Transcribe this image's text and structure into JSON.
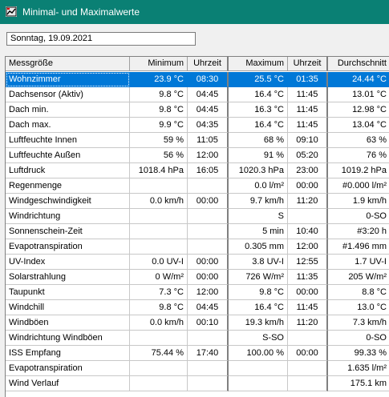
{
  "window": {
    "title": "Minimal- und Maximalwerte"
  },
  "date_field": {
    "value": "Sonntag, 19.09.2021"
  },
  "table": {
    "headers": {
      "name": "Messgröße",
      "min": "Minimum",
      "min_time": "Uhrzeit",
      "max": "Maximum",
      "max_time": "Uhrzeit",
      "avg": "Durchschnitt"
    },
    "selected_row": 0,
    "rows": [
      {
        "name": "Wohnzimmer",
        "min": "23.9 °C",
        "min_time": "08:30",
        "max": "25.5 °C",
        "max_time": "01:35",
        "avg": "24.44 °C"
      },
      {
        "name": "Dachsensor (Aktiv)",
        "min": "9.8 °C",
        "min_time": "04:45",
        "max": "16.4 °C",
        "max_time": "11:45",
        "avg": "13.01 °C"
      },
      {
        "name": "Dach min.",
        "min": "9.8 °C",
        "min_time": "04:45",
        "max": "16.3 °C",
        "max_time": "11:45",
        "avg": "12.98 °C"
      },
      {
        "name": "Dach max.",
        "min": "9.9 °C",
        "min_time": "04:35",
        "max": "16.4 °C",
        "max_time": "11:45",
        "avg": "13.04 °C"
      },
      {
        "name": "Luftfeuchte Innen",
        "min": "59 %",
        "min_time": "11:05",
        "max": "68 %",
        "max_time": "09:10",
        "avg": "63 %"
      },
      {
        "name": "Luftfeuchte Außen",
        "min": "56 %",
        "min_time": "12:00",
        "max": "91 %",
        "max_time": "05:20",
        "avg": "76 %"
      },
      {
        "name": "Luftdruck",
        "min": "1018.4 hPa",
        "min_time": "16:05",
        "max": "1020.3 hPa",
        "max_time": "23:00",
        "avg": "1019.2 hPa"
      },
      {
        "name": "Regenmenge",
        "min": "",
        "min_time": "",
        "max": "0.0 l/m²",
        "max_time": "00:00",
        "avg": "#0.000 l/m²"
      },
      {
        "name": "Windgeschwindigkeit",
        "min": "0.0 km/h",
        "min_time": "00:00",
        "max": "9.7 km/h",
        "max_time": "11:20",
        "avg": "1.9 km/h"
      },
      {
        "name": "Windrichtung",
        "min": "",
        "min_time": "",
        "max": "S",
        "max_time": "",
        "avg": "0-SO"
      },
      {
        "name": "Sonnenschein-Zeit",
        "min": "",
        "min_time": "",
        "max": "5 min",
        "max_time": "10:40",
        "avg": "#3:20 h"
      },
      {
        "name": "Evapotranspiration",
        "min": "",
        "min_time": "",
        "max": "0.305 mm",
        "max_time": "12:00",
        "avg": "#1.496 mm"
      },
      {
        "name": "UV-Index",
        "min": "0.0 UV-I",
        "min_time": "00:00",
        "max": "3.8 UV-I",
        "max_time": "12:55",
        "avg": "1.7 UV-I"
      },
      {
        "name": "Solarstrahlung",
        "min": "0 W/m²",
        "min_time": "00:00",
        "max": "726 W/m²",
        "max_time": "11:35",
        "avg": "205 W/m²"
      },
      {
        "name": "Taupunkt",
        "min": "7.3 °C",
        "min_time": "12:00",
        "max": "9.8 °C",
        "max_time": "00:00",
        "avg": "8.8 °C"
      },
      {
        "name": "Windchill",
        "min": "9.8 °C",
        "min_time": "04:45",
        "max": "16.4 °C",
        "max_time": "11:45",
        "avg": "13.0 °C"
      },
      {
        "name": "Windböen",
        "min": "0.0 km/h",
        "min_time": "00:10",
        "max": "19.3 km/h",
        "max_time": "11:20",
        "avg": "7.3 km/h"
      },
      {
        "name": "Windrichtung Windböen",
        "min": "",
        "min_time": "",
        "max": "S-SO",
        "max_time": "",
        "avg": "0-SO"
      },
      {
        "name": "ISS Empfang",
        "min": "75.44 %",
        "min_time": "17:40",
        "max": "100.00 %",
        "max_time": "00:00",
        "avg": "99.33 %"
      },
      {
        "name": "Evapotranspiration",
        "min": "",
        "min_time": "",
        "max": "",
        "max_time": "",
        "avg": "1.635 l/m²"
      },
      {
        "name": "Wind Verlauf",
        "min": "",
        "min_time": "",
        "max": "",
        "max_time": "",
        "avg": "175.1 km"
      }
    ]
  }
}
